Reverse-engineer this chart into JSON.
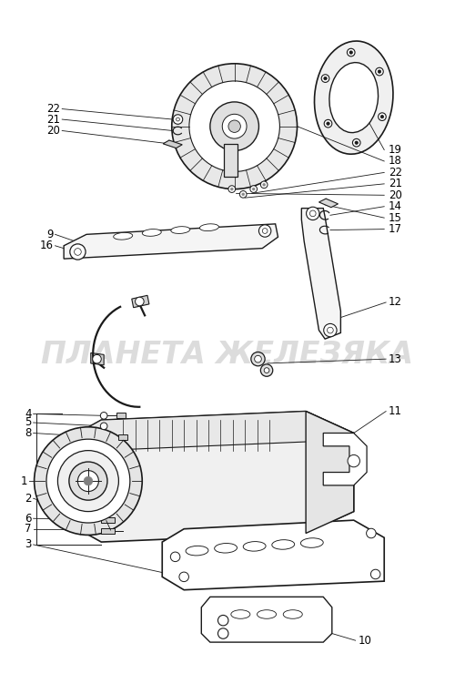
{
  "bg_color": "#ffffff",
  "line_color": "#1a1a1a",
  "watermark_text": "ПЛАНЕТА ЖЕЛЕЗЯКА",
  "watermark_color": "#c0c0c0",
  "watermark_fontsize": 24,
  "fig_width": 5.0,
  "fig_height": 7.51,
  "dpi": 100
}
